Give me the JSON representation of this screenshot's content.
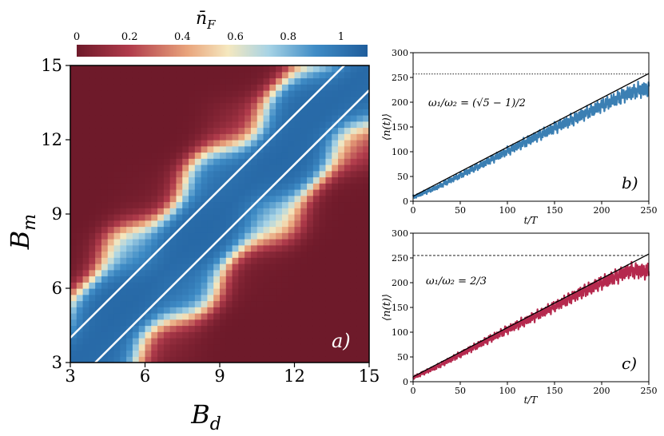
{
  "figure": {
    "colorbar": {
      "label_main": "n̄",
      "label_sub": "F",
      "ticks": [
        0,
        0.2,
        0.4,
        0.6,
        0.8,
        1
      ],
      "tick_labels": [
        "0",
        "0.2",
        "0.4",
        "0.6",
        "0.8",
        "1"
      ],
      "vmin": 0,
      "vmax": 1.1,
      "colors": [
        "#6e1a2a",
        "#b03b4b",
        "#e9a47c",
        "#f5e8bf",
        "#a7d3e5",
        "#3f8cc6",
        "#1f5d9c"
      ]
    }
  },
  "chart_data": [
    {
      "type": "heatmap",
      "panel_label": "a)",
      "xlabel_main": "B",
      "xlabel_sub": "d",
      "ylabel_main": "B",
      "ylabel_sub": "m",
      "xlim": [
        3,
        15
      ],
      "ylim": [
        3,
        15
      ],
      "xticks": [
        3,
        6,
        9,
        12,
        15
      ],
      "yticks": [
        3,
        6,
        9,
        12,
        15
      ],
      "xtick_labels": [
        "3",
        "6",
        "9",
        "12",
        "15"
      ],
      "ytick_labels": [
        "3",
        "6",
        "9",
        "12",
        "15"
      ],
      "value_description": "n̄_F is ~1 near diagonal B_m = B_d and ~0 far from it",
      "diagonal_band_halfwidth": 2.6,
      "white_lines": [
        {
          "x": [
            3,
            14.2
          ],
          "y": [
            4,
            15.2
          ]
        },
        {
          "x": [
            4,
            15
          ],
          "y": [
            3,
            14
          ]
        }
      ]
    },
    {
      "type": "line",
      "panel_label": "b)",
      "annotation": "ω₁/ω₂ = (√5 − 1)/2",
      "xlabel": "t/T",
      "ylabel": "⟨n(t)⟩",
      "xlim": [
        0,
        250
      ],
      "ylim": [
        0,
        300
      ],
      "xticks": [
        0,
        50,
        100,
        150,
        200,
        250
      ],
      "yticks": [
        0,
        50,
        100,
        150,
        200,
        250,
        300
      ],
      "xtick_labels": [
        "0",
        "50",
        "100",
        "150",
        "200",
        "250"
      ],
      "ytick_labels": [
        "0",
        "50",
        "100",
        "150",
        "200",
        "250",
        "300"
      ],
      "series": [
        {
          "name": "simulation",
          "color": "#3b7fb3",
          "x": [
            0,
            25,
            50,
            75,
            100,
            125,
            150,
            175,
            200,
            225,
            240,
            250
          ],
          "y": [
            8,
            28,
            52,
            76,
            101,
            125,
            148,
            170,
            193,
            215,
            225,
            226
          ]
        },
        {
          "name": "linear fit",
          "color": "#000000",
          "x": [
            0,
            250
          ],
          "y": [
            10,
            258
          ]
        }
      ],
      "hline": {
        "y": 257,
        "style": "dotted"
      }
    },
    {
      "type": "line",
      "panel_label": "c)",
      "annotation": "ω₁/ω₂ = 2/3",
      "xlabel": "t/T",
      "ylabel": "⟨n(t)⟩",
      "xlim": [
        0,
        250
      ],
      "ylim": [
        0,
        300
      ],
      "xticks": [
        0,
        50,
        100,
        150,
        200,
        250
      ],
      "yticks": [
        0,
        50,
        100,
        150,
        200,
        250,
        300
      ],
      "xtick_labels": [
        "0",
        "50",
        "100",
        "150",
        "200",
        "250"
      ],
      "ytick_labels": [
        "0",
        "50",
        "100",
        "150",
        "200",
        "250",
        "300"
      ],
      "series": [
        {
          "name": "simulation",
          "color": "#b5294e",
          "x": [
            0,
            25,
            50,
            75,
            100,
            125,
            150,
            175,
            200,
            215,
            230,
            250
          ],
          "y": [
            8,
            30,
            55,
            80,
            105,
            128,
            152,
            177,
            200,
            212,
            225,
            222
          ]
        },
        {
          "name": "linear fit",
          "color": "#000000",
          "x": [
            0,
            250
          ],
          "y": [
            10,
            258
          ]
        }
      ],
      "hline": {
        "y": 255,
        "style": "dashed"
      }
    }
  ]
}
